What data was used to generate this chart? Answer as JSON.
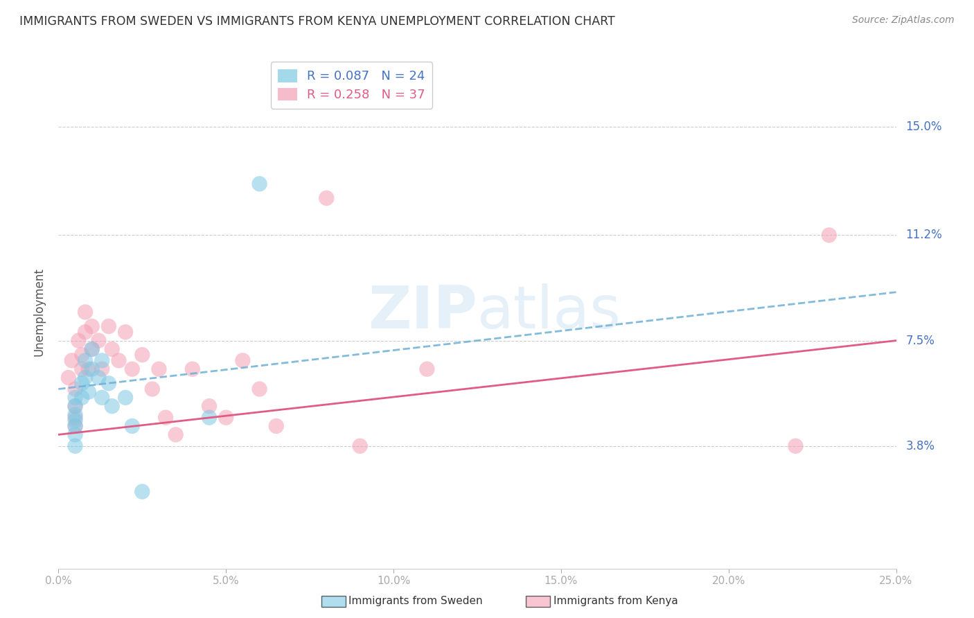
{
  "title": "IMMIGRANTS FROM SWEDEN VS IMMIGRANTS FROM KENYA UNEMPLOYMENT CORRELATION CHART",
  "source": "Source: ZipAtlas.com",
  "ylabel": "Unemployment",
  "ytick_labels": [
    "15.0%",
    "11.2%",
    "7.5%",
    "3.8%"
  ],
  "ytick_values": [
    0.15,
    0.112,
    0.075,
    0.038
  ],
  "xlim": [
    0.0,
    0.25
  ],
  "ylim": [
    -0.005,
    0.175
  ],
  "watermark": "ZIPatlas",
  "color_sweden": "#7ec8e3",
  "color_kenya": "#f4a0b5",
  "color_sweden_line": "#6dafd6",
  "color_kenya_line": "#e05c85",
  "color_text_blue": "#4472c4",
  "color_text_pink": "#e05c85",
  "sweden_R": "0.087",
  "sweden_N": "24",
  "kenya_R": "0.258",
  "kenya_N": "37",
  "sweden_line_start_y": 0.058,
  "sweden_line_end_y": 0.092,
  "kenya_line_start_y": 0.042,
  "kenya_line_end_y": 0.075,
  "sweden_scatter_x": [
    0.005,
    0.005,
    0.005,
    0.005,
    0.005,
    0.005,
    0.005,
    0.007,
    0.007,
    0.008,
    0.008,
    0.009,
    0.01,
    0.01,
    0.012,
    0.013,
    0.013,
    0.015,
    0.016,
    0.02,
    0.022,
    0.025,
    0.045,
    0.06
  ],
  "sweden_scatter_y": [
    0.055,
    0.052,
    0.049,
    0.047,
    0.045,
    0.042,
    0.038,
    0.06,
    0.055,
    0.068,
    0.062,
    0.057,
    0.072,
    0.065,
    0.062,
    0.068,
    0.055,
    0.06,
    0.052,
    0.055,
    0.045,
    0.022,
    0.048,
    0.13
  ],
  "kenya_scatter_x": [
    0.003,
    0.004,
    0.005,
    0.005,
    0.005,
    0.005,
    0.006,
    0.007,
    0.007,
    0.008,
    0.008,
    0.009,
    0.01,
    0.01,
    0.012,
    0.013,
    0.015,
    0.016,
    0.018,
    0.02,
    0.022,
    0.025,
    0.028,
    0.03,
    0.032,
    0.035,
    0.04,
    0.045,
    0.05,
    0.055,
    0.06,
    0.065,
    0.08,
    0.09,
    0.11,
    0.22,
    0.23
  ],
  "kenya_scatter_y": [
    0.062,
    0.068,
    0.058,
    0.052,
    0.048,
    0.045,
    0.075,
    0.07,
    0.065,
    0.085,
    0.078,
    0.065,
    0.08,
    0.072,
    0.075,
    0.065,
    0.08,
    0.072,
    0.068,
    0.078,
    0.065,
    0.07,
    0.058,
    0.065,
    0.048,
    0.042,
    0.065,
    0.052,
    0.048,
    0.068,
    0.058,
    0.045,
    0.125,
    0.038,
    0.065,
    0.038,
    0.112
  ]
}
